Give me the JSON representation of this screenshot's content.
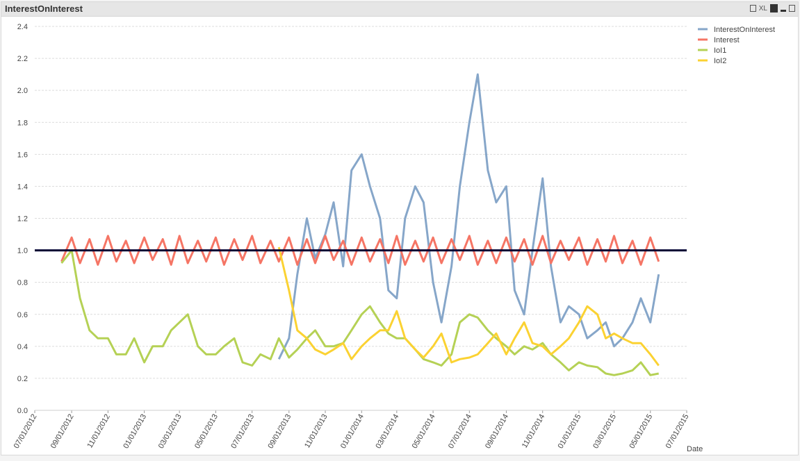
{
  "window": {
    "title": "InterestOnInterest",
    "icons": [
      "print-icon",
      "xl-export-icon",
      "chart-type-icon",
      "minimize-icon",
      "maximize-icon"
    ],
    "xl_label": "XL"
  },
  "chart_data": {
    "type": "line",
    "title": "",
    "xlabel": "Date",
    "ylabel": "",
    "ylim": [
      0,
      2.4
    ],
    "yticks": [
      "0.0",
      "0.2",
      "0.4",
      "0.6",
      "0.8",
      "1.0",
      "1.2",
      "1.4",
      "1.6",
      "1.8",
      "2.0",
      "2.2",
      "2.4"
    ],
    "xlim": [
      "2012-07-01",
      "2015-07-01"
    ],
    "xticks": [
      "07/01/2012",
      "09/01/2012",
      "11/01/2012",
      "01/01/2013",
      "03/01/2013",
      "05/01/2013",
      "07/01/2013",
      "09/01/2013",
      "11/01/2013",
      "01/01/2014",
      "03/01/2014",
      "05/01/2014",
      "07/01/2014",
      "09/01/2014",
      "11/01/2014",
      "01/01/2015",
      "03/01/2015",
      "05/01/2015",
      "07/01/2015"
    ],
    "grid": true,
    "legend_position": "top-right",
    "reference_line": {
      "value": 1.0,
      "color": "#000033"
    },
    "x": [
      "2012-08-15",
      "2012-09-01",
      "2012-09-15",
      "2012-10-01",
      "2012-10-15",
      "2012-11-01",
      "2012-11-15",
      "2012-12-01",
      "2012-12-15",
      "2013-01-01",
      "2013-01-15",
      "2013-02-01",
      "2013-02-15",
      "2013-03-01",
      "2013-03-15",
      "2013-04-01",
      "2013-04-15",
      "2013-05-01",
      "2013-05-15",
      "2013-06-01",
      "2013-06-15",
      "2013-07-01",
      "2013-07-15",
      "2013-08-01",
      "2013-08-15",
      "2013-09-01",
      "2013-09-15",
      "2013-10-01",
      "2013-10-15",
      "2013-11-01",
      "2013-11-15",
      "2013-12-01",
      "2013-12-15",
      "2014-01-01",
      "2014-01-15",
      "2014-02-01",
      "2014-02-15",
      "2014-03-01",
      "2014-03-15",
      "2014-04-01",
      "2014-04-15",
      "2014-05-01",
      "2014-05-15",
      "2014-06-01",
      "2014-06-15",
      "2014-07-01",
      "2014-07-15",
      "2014-08-01",
      "2014-08-15",
      "2014-09-01",
      "2014-09-15",
      "2014-10-01",
      "2014-10-15",
      "2014-11-01",
      "2014-11-15",
      "2014-12-01",
      "2014-12-15",
      "2015-01-01",
      "2015-01-15",
      "2015-02-01",
      "2015-02-15",
      "2015-03-01",
      "2015-03-15",
      "2015-04-01",
      "2015-04-15",
      "2015-05-01",
      "2015-05-15"
    ],
    "series": [
      {
        "name": "InterestOnInterest",
        "color": "#86a6c9",
        "values": [
          null,
          null,
          null,
          null,
          null,
          null,
          null,
          null,
          null,
          null,
          null,
          null,
          null,
          null,
          null,
          null,
          null,
          null,
          null,
          null,
          null,
          null,
          null,
          null,
          0.32,
          0.45,
          0.85,
          1.2,
          0.95,
          1.1,
          1.3,
          0.9,
          1.5,
          1.6,
          1.4,
          1.2,
          0.75,
          0.7,
          1.2,
          1.4,
          1.3,
          0.8,
          0.55,
          0.9,
          1.4,
          1.8,
          2.1,
          1.5,
          1.3,
          1.4,
          0.75,
          0.6,
          1.0,
          1.45,
          0.9,
          0.55,
          0.65,
          0.6,
          0.45,
          0.5,
          0.55,
          0.4,
          0.45,
          0.55,
          0.7,
          0.55,
          0.85
        ]
      },
      {
        "name": "Interest",
        "color": "#f57565",
        "values": [
          0.93,
          1.08,
          0.92,
          1.07,
          0.91,
          1.09,
          0.93,
          1.06,
          0.92,
          1.08,
          0.94,
          1.07,
          0.91,
          1.09,
          0.92,
          1.06,
          0.93,
          1.08,
          0.91,
          1.07,
          0.94,
          1.09,
          0.92,
          1.06,
          0.93,
          1.08,
          0.91,
          1.07,
          0.92,
          1.09,
          0.94,
          1.06,
          0.91,
          1.08,
          0.93,
          1.07,
          0.92,
          1.09,
          0.91,
          1.06,
          0.93,
          1.08,
          0.92,
          1.07,
          0.94,
          1.09,
          0.91,
          1.06,
          0.92,
          1.08,
          0.93,
          1.07,
          0.91,
          1.09,
          0.92,
          1.06,
          0.94,
          1.08,
          0.91,
          1.07,
          0.93,
          1.09,
          0.92,
          1.06,
          0.91,
          1.08,
          0.93
        ]
      },
      {
        "name": "IoI1",
        "color": "#b5d155",
        "values": [
          0.92,
          1.0,
          0.7,
          0.5,
          0.45,
          0.45,
          0.35,
          0.35,
          0.45,
          0.3,
          0.4,
          0.4,
          0.5,
          0.55,
          0.6,
          0.4,
          0.35,
          0.35,
          0.4,
          0.45,
          0.3,
          0.28,
          0.35,
          0.32,
          0.45,
          0.33,
          0.38,
          0.45,
          0.5,
          0.4,
          0.4,
          0.42,
          0.5,
          0.6,
          0.65,
          0.55,
          0.48,
          0.45,
          0.45,
          0.38,
          0.32,
          0.3,
          0.28,
          0.35,
          0.55,
          0.6,
          0.58,
          0.5,
          0.45,
          0.4,
          0.35,
          0.4,
          0.38,
          0.42,
          0.35,
          0.3,
          0.25,
          0.3,
          0.28,
          0.27,
          0.23,
          0.22,
          0.23,
          0.25,
          0.3,
          0.22,
          0.23
        ]
      },
      {
        "name": "IoI2",
        "color": "#fbd232",
        "values": [
          null,
          null,
          null,
          null,
          null,
          null,
          null,
          null,
          null,
          null,
          null,
          null,
          null,
          null,
          null,
          null,
          null,
          null,
          null,
          null,
          null,
          null,
          null,
          null,
          1.02,
          0.75,
          0.5,
          0.45,
          0.38,
          0.35,
          0.38,
          0.42,
          0.32,
          0.4,
          0.45,
          0.5,
          0.5,
          0.62,
          0.45,
          0.38,
          0.33,
          0.4,
          0.48,
          0.3,
          0.32,
          0.33,
          0.35,
          0.42,
          0.48,
          0.35,
          0.45,
          0.55,
          0.42,
          0.4,
          0.35,
          0.4,
          0.45,
          0.55,
          0.65,
          0.6,
          0.45,
          0.48,
          0.45,
          0.42,
          0.42,
          0.35,
          0.28
        ]
      }
    ]
  }
}
